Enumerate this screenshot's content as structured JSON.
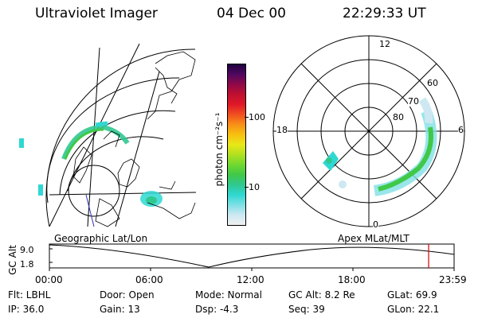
{
  "header": {
    "title": "Ultraviolet Imager",
    "date": "04 Dec 00",
    "time": "22:29:33 UT"
  },
  "colorbar": {
    "unit_label": "photon cm⁻²s⁻¹",
    "ticks": [
      "100",
      "10"
    ],
    "colors": [
      "#f0f0f0",
      "#cde8f2",
      "#7fe0e6",
      "#2fd8d2",
      "#30c890",
      "#40c848",
      "#70d830",
      "#b0e020",
      "#e8e818",
      "#f8c010",
      "#f89018",
      "#f05020",
      "#e01828",
      "#c01030",
      "#900848",
      "#500860",
      "#200040"
    ]
  },
  "left_panel": {
    "label": "Geographic Lat/Lon"
  },
  "right_panel": {
    "label": "Apex  MLat/MLT",
    "hour_labels": [
      "12",
      "18",
      "6",
      "0"
    ],
    "lat_labels": [
      "60",
      "70",
      "80"
    ]
  },
  "timeline": {
    "y_axis_label": "GC Alt",
    "y_ticks": [
      "9.0",
      "1.8"
    ],
    "x_ticks": [
      "00:00",
      "06:00",
      "12:00",
      "18:00",
      "23:59"
    ],
    "current_marker_color": "#d00000",
    "current_marker_time_hours": 22.49
  },
  "status": {
    "flt": "Flt: LBHL",
    "ip": "IP: 36.0",
    "door": "Door: Open",
    "gain": "Gain: 13",
    "mode": "Mode: Normal",
    "dsp": "Dsp:  -4.3",
    "gc_alt": "GC Alt: 8.2 Re",
    "seq": "Seq: 39",
    "glat": "GLat:  69.9",
    "glon": "GLon:  22.1"
  }
}
